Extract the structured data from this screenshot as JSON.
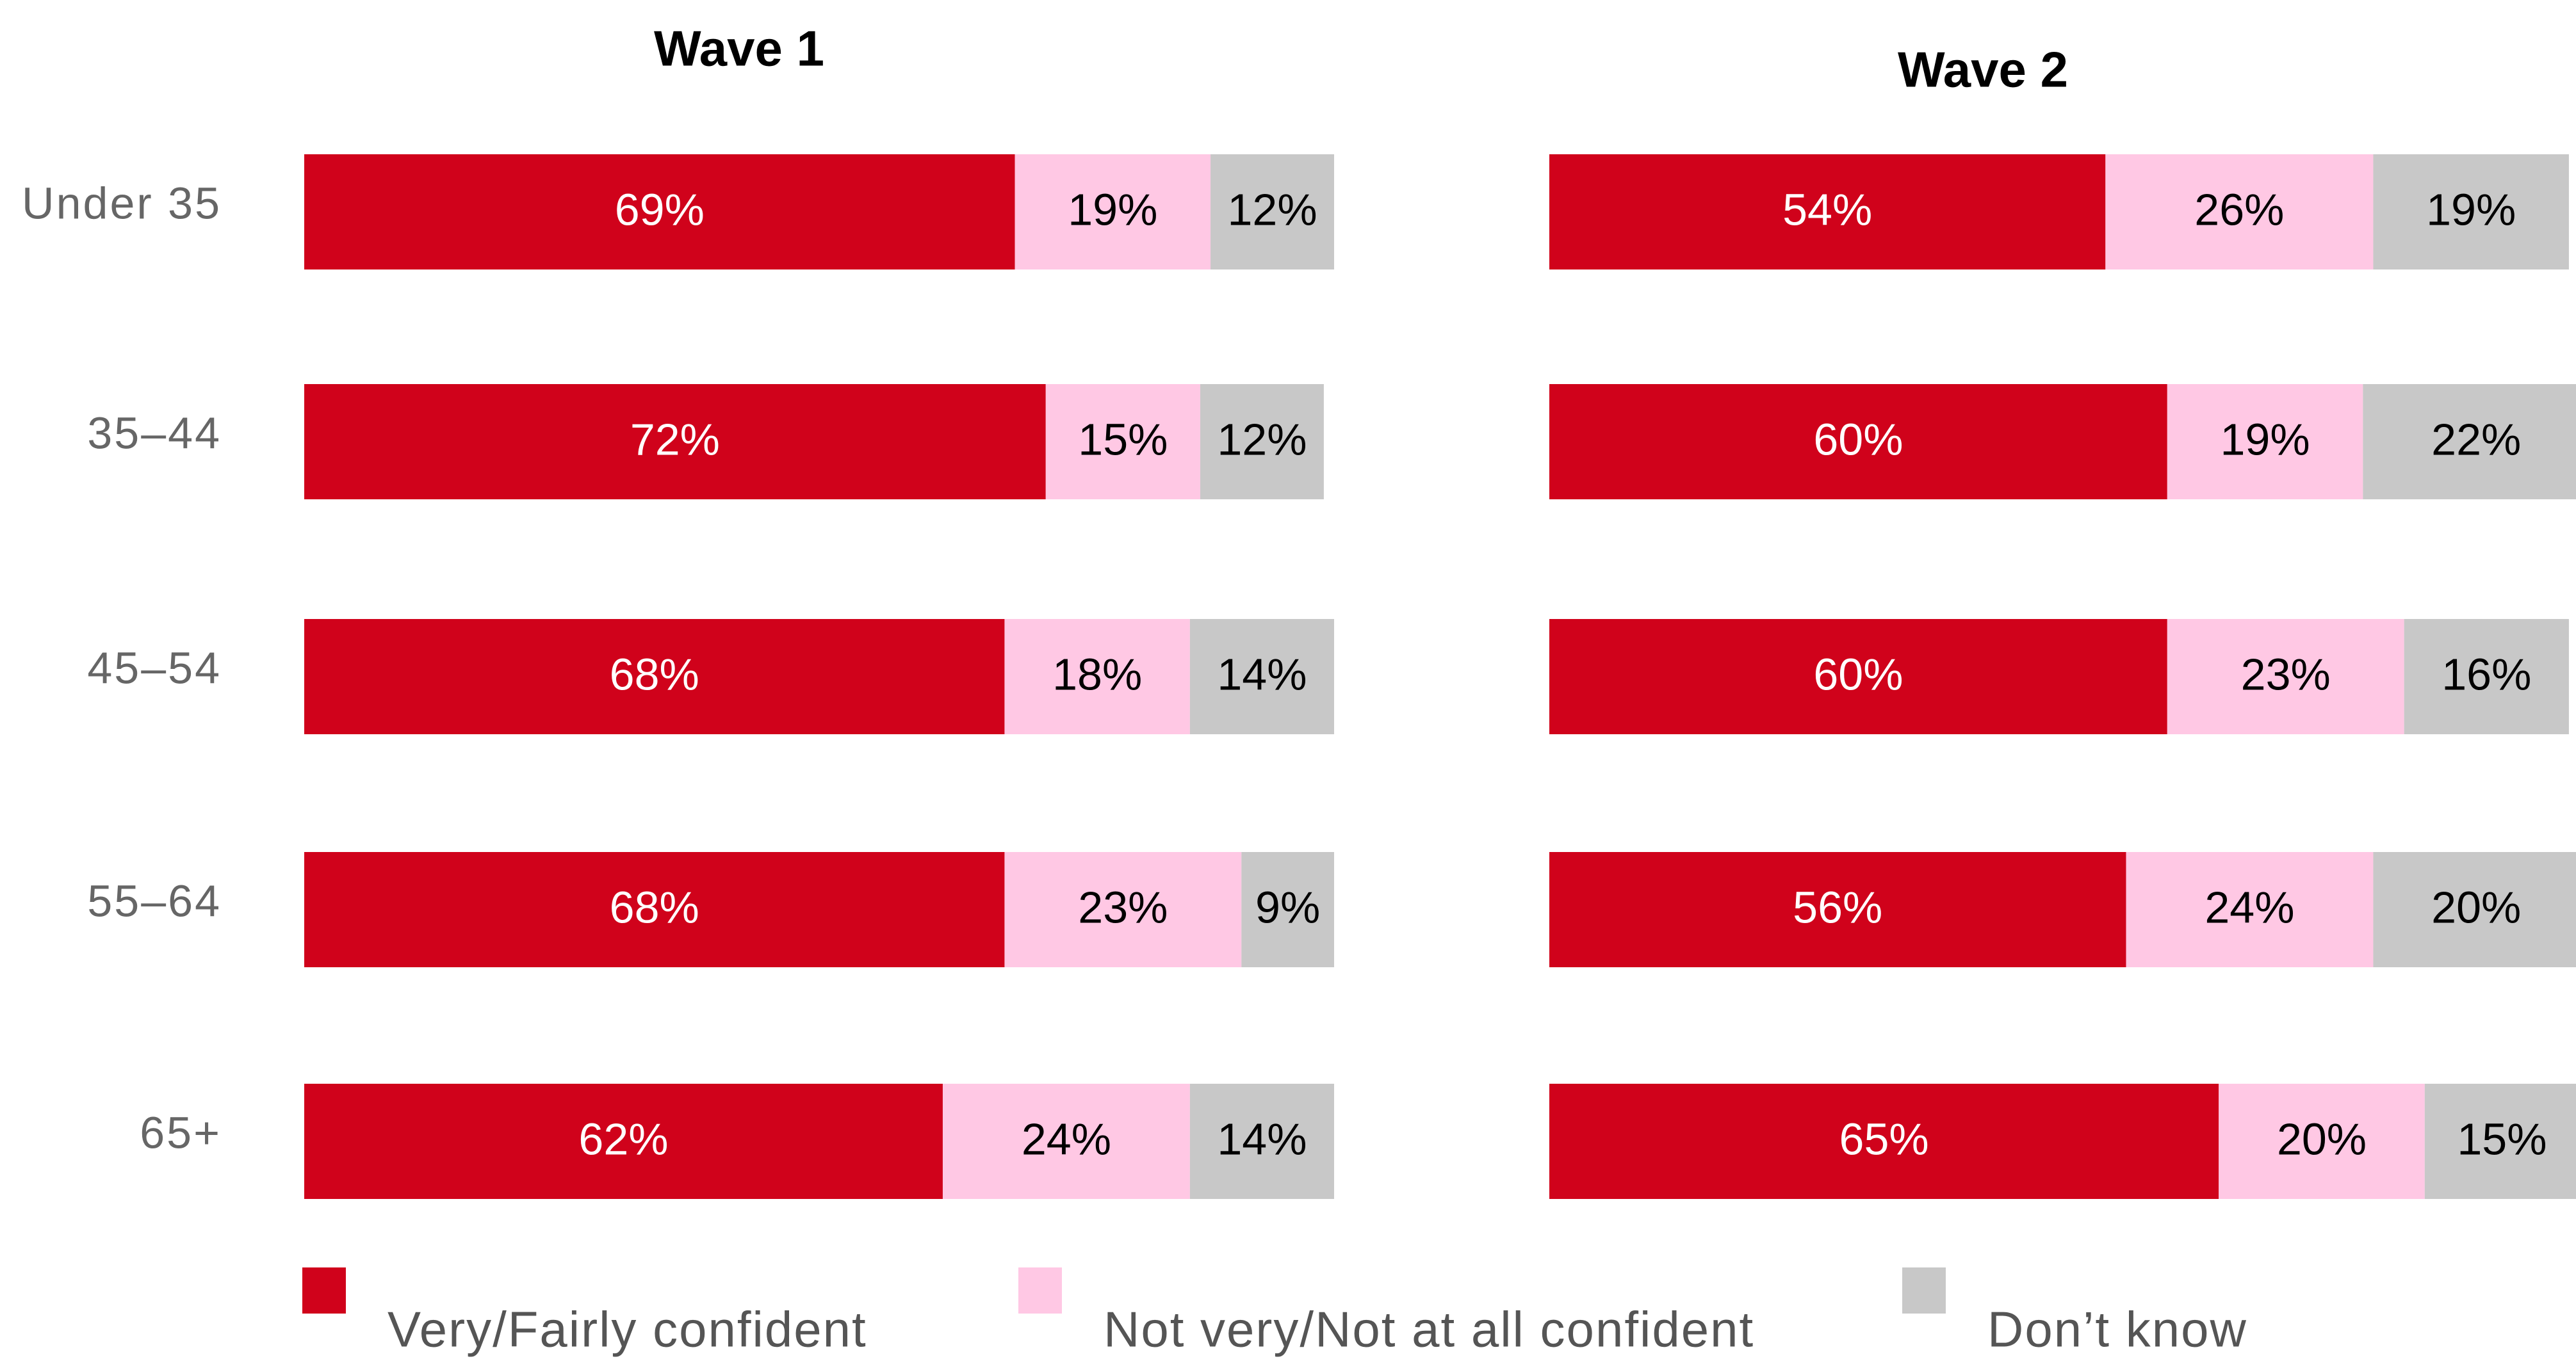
{
  "chart_data": [
    {
      "type": "stacked-bar-horizontal",
      "title": "Wave 1",
      "categories": [
        "Under 35",
        "35–44",
        "45–54",
        "55–64",
        "65+"
      ],
      "series": [
        {
          "name": "Very/Fairly confident",
          "color": "#d0021b",
          "values": [
            69,
            72,
            68,
            68,
            62
          ],
          "value_labels": [
            "69%",
            "72%",
            "68%",
            "68%",
            "62%"
          ]
        },
        {
          "name": "Not very/Not at all confident",
          "color": "#ffc8e4",
          "values": [
            19,
            15,
            18,
            23,
            24
          ],
          "value_labels": [
            "19%",
            "15%",
            "18%",
            "23%",
            "24%"
          ]
        },
        {
          "name": "Don’t know",
          "color": "#c8c8c8",
          "values": [
            12,
            12,
            14,
            9,
            14
          ],
          "value_labels": [
            "12%",
            "12%",
            "14%",
            "9%",
            "14%"
          ]
        }
      ]
    },
    {
      "type": "stacked-bar-horizontal",
      "title": "Wave 2",
      "categories": [
        null,
        null,
        null,
        null,
        null
      ],
      "series": [
        {
          "color": "#d0021b",
          "values": [
            54,
            60,
            60,
            56,
            65
          ],
          "value_labels": [
            "54%",
            "60%",
            "60%",
            "56%",
            "65%"
          ]
        },
        {
          "color": "#ffc8e4",
          "values": [
            26,
            19,
            23,
            24,
            20
          ],
          "value_labels": [
            "26%",
            "19%",
            "23%",
            "24%",
            "20%"
          ]
        },
        {
          "color": "#c8c8c8",
          "values": [
            19,
            22,
            16,
            20,
            15
          ],
          "value_labels": [
            "19%",
            "22%",
            "16%",
            "20%",
            "15%"
          ]
        }
      ]
    }
  ]
}
